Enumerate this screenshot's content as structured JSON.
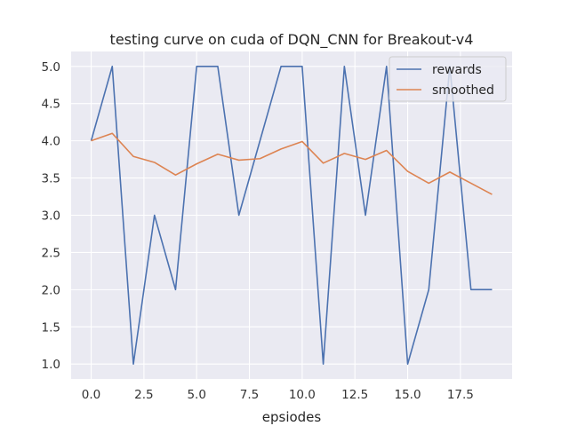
{
  "chart_data": {
    "type": "line",
    "title": "testing curve on cuda of DQN_CNN for Breakout-v4",
    "xlabel": "epsiodes",
    "ylabel": "",
    "x": [
      0,
      1,
      2,
      3,
      4,
      5,
      6,
      7,
      8,
      9,
      10,
      11,
      12,
      13,
      14,
      15,
      16,
      17,
      18,
      19
    ],
    "xlim": [
      -0.95,
      19.95
    ],
    "ylim": [
      0.8,
      5.2
    ],
    "xticks": [
      0.0,
      2.5,
      5.0,
      7.5,
      10.0,
      12.5,
      15.0,
      17.5
    ],
    "yticks": [
      1.0,
      1.5,
      2.0,
      2.5,
      3.0,
      3.5,
      4.0,
      4.5,
      5.0
    ],
    "xtick_labels": [
      "0.0",
      "2.5",
      "5.0",
      "7.5",
      "10.0",
      "12.5",
      "15.0",
      "17.5"
    ],
    "ytick_labels": [
      "1.0",
      "1.5",
      "2.0",
      "2.5",
      "3.0",
      "3.5",
      "4.0",
      "4.5",
      "5.0"
    ],
    "grid": true,
    "legend_position": "top-right",
    "series": [
      {
        "name": "rewards",
        "color": "#4c72b0",
        "values": [
          4,
          5,
          1,
          3,
          2,
          5,
          5,
          3,
          4,
          5,
          5,
          1,
          5,
          3,
          5,
          1,
          2,
          5,
          2,
          2
        ]
      },
      {
        "name": "smoothed",
        "color": "#dd8452",
        "values": [
          4.0,
          4.1,
          3.79,
          3.71,
          3.54,
          3.69,
          3.82,
          3.74,
          3.76,
          3.89,
          3.99,
          3.7,
          3.83,
          3.75,
          3.87,
          3.59,
          3.43,
          3.58,
          3.43,
          3.28
        ]
      }
    ]
  },
  "colors": {
    "plot_background": "#eaeaf2",
    "grid": "#ffffff"
  }
}
